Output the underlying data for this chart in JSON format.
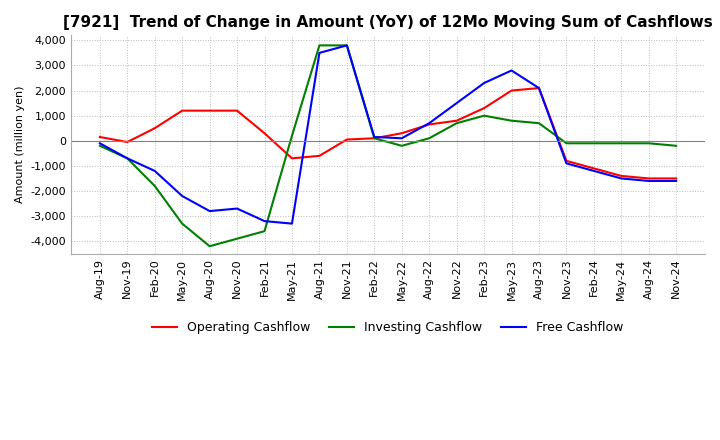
{
  "title": "[7921]  Trend of Change in Amount (YoY) of 12Mo Moving Sum of Cashflows",
  "ylabel": "Amount (million yen)",
  "ylim": [
    -4500,
    4200
  ],
  "yticks": [
    -4000,
    -3000,
    -2000,
    -1000,
    0,
    1000,
    2000,
    3000,
    4000
  ],
  "x_labels": [
    "Aug-19",
    "Nov-19",
    "Feb-20",
    "May-20",
    "Aug-20",
    "Nov-20",
    "Feb-21",
    "May-21",
    "Aug-21",
    "Nov-21",
    "Feb-22",
    "May-22",
    "Aug-22",
    "Nov-22",
    "Feb-23",
    "May-23",
    "Aug-23",
    "Nov-23",
    "Feb-24",
    "May-24",
    "Aug-24",
    "Nov-24"
  ],
  "operating": [
    150,
    -50,
    500,
    1200,
    1200,
    1200,
    300,
    -700,
    -600,
    50,
    100,
    300,
    650,
    800,
    1300,
    2000,
    2100,
    -800,
    -1100,
    -1400,
    -1500,
    -1500
  ],
  "investing": [
    -200,
    -700,
    -1800,
    -3300,
    -4200,
    -3900,
    -3600,
    200,
    3800,
    3800,
    100,
    -200,
    100,
    700,
    1000,
    800,
    700,
    -100,
    -100,
    -100,
    -100,
    -200
  ],
  "free": [
    -100,
    -700,
    -1200,
    -2200,
    -2800,
    -2700,
    -3200,
    -3300,
    3500,
    3800,
    150,
    100,
    700,
    1500,
    2300,
    2800,
    2100,
    -900,
    -1200,
    -1500,
    -1600,
    -1600
  ],
  "operating_color": "#ff0000",
  "investing_color": "#008000",
  "free_color": "#0000ff",
  "bg_color": "#ffffff",
  "grid_color": "#bbbbbb",
  "title_fontsize": 11,
  "axis_fontsize": 8,
  "legend_fontsize": 9
}
